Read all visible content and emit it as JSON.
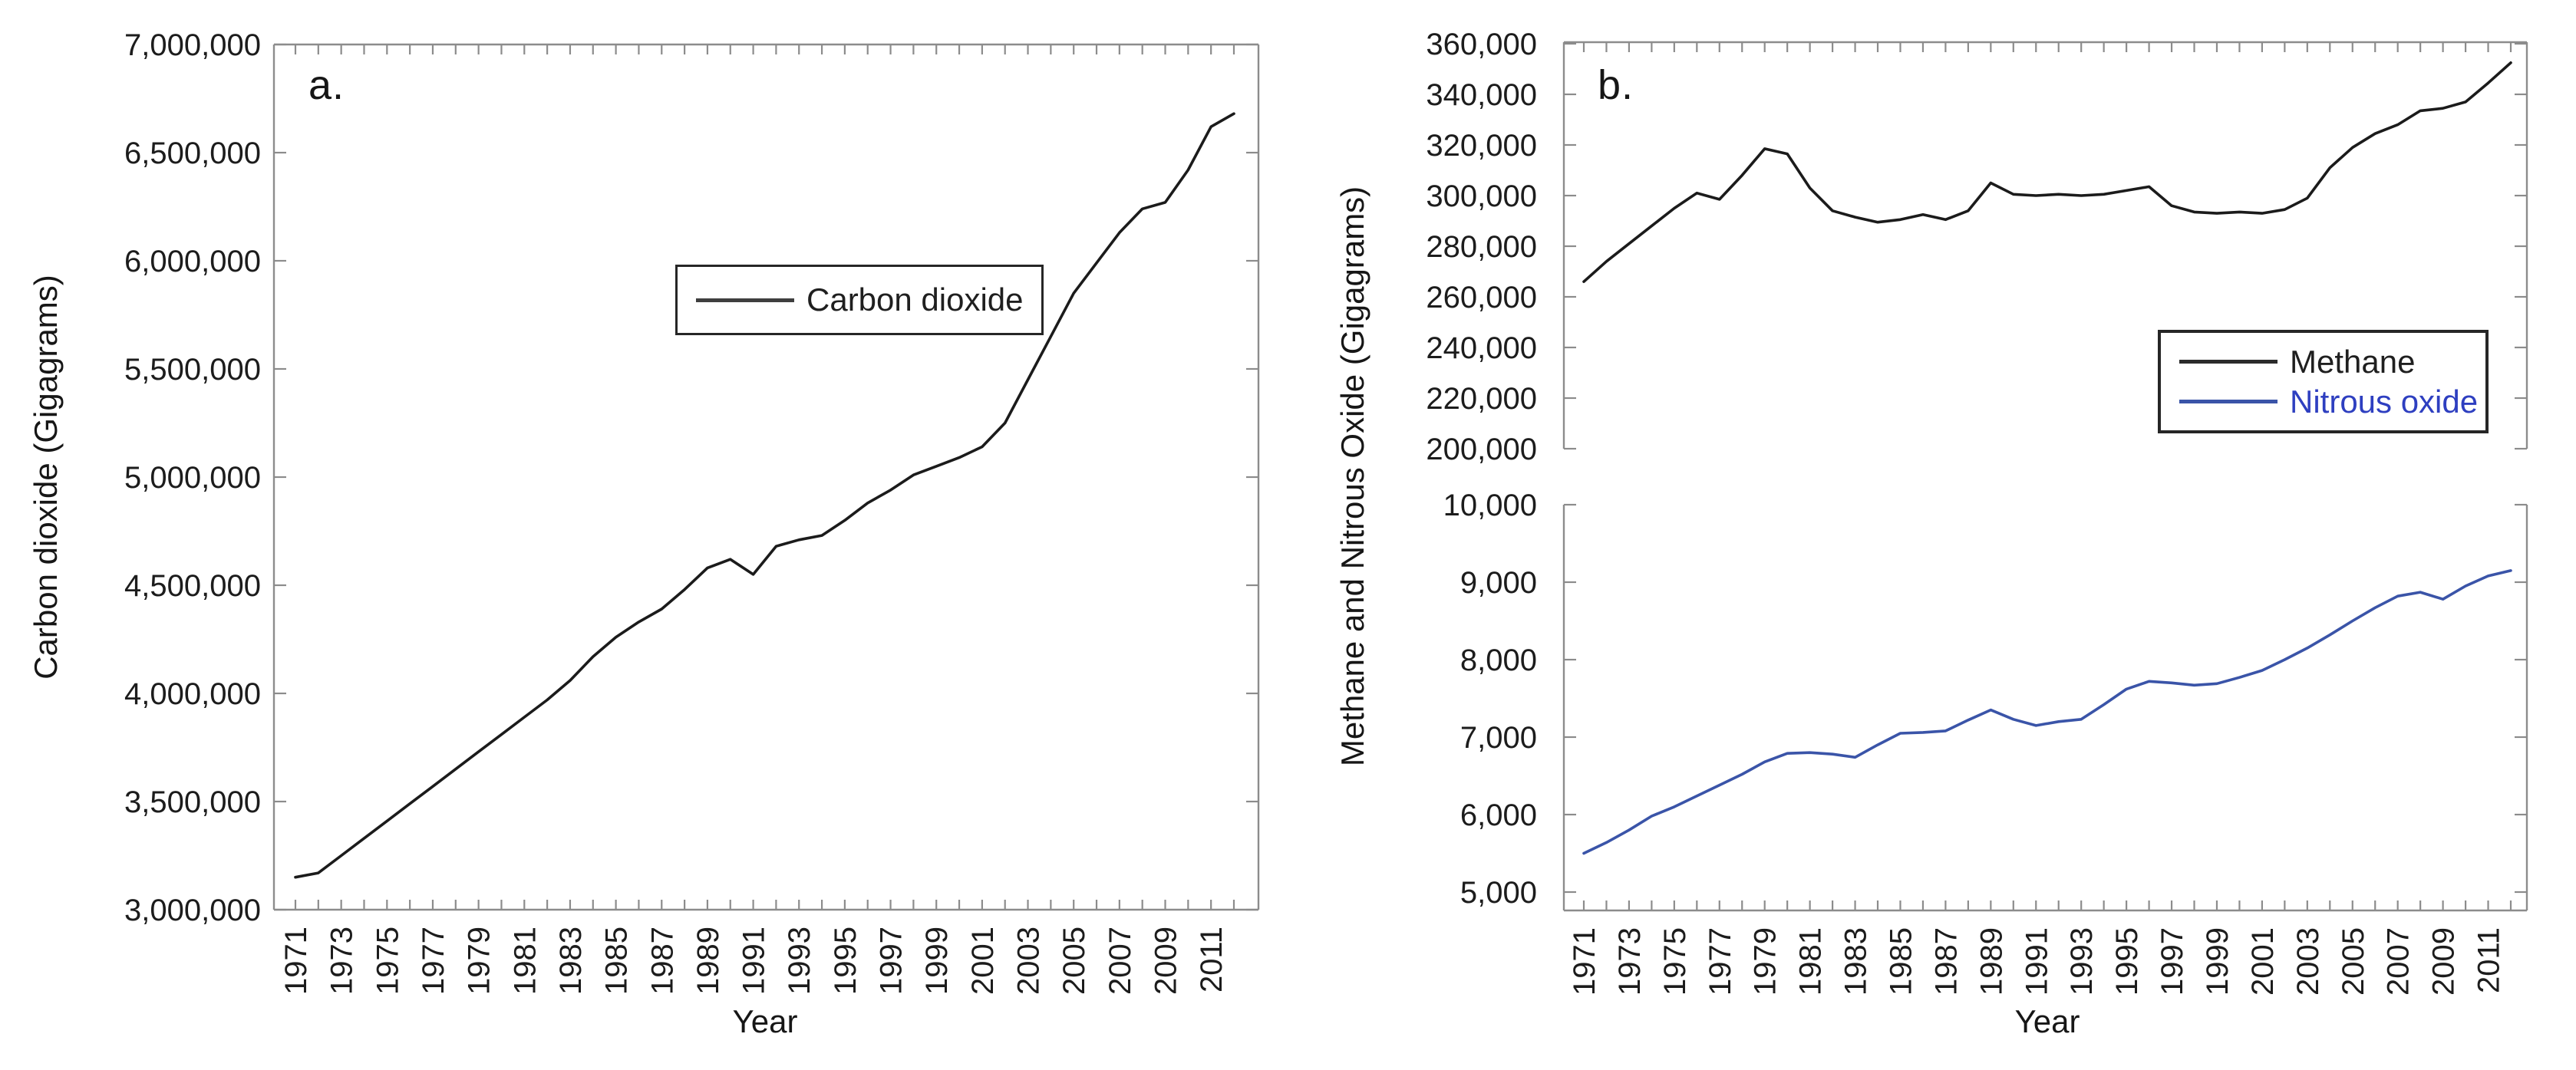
{
  "figure": {
    "background": "#ffffff",
    "axis_color": "#8c8c8c",
    "text_color": "#1c1c1c",
    "panel_a_letter": "a.",
    "panel_b_letter": "b."
  },
  "chart_data": [
    {
      "type": "line",
      "panel_label": "a.",
      "xlabel": "Year",
      "ylabel": "Carbon dioxide (Gigagrams)",
      "x_label_step": 2,
      "x": [
        1971,
        1972,
        1973,
        1974,
        1975,
        1976,
        1977,
        1978,
        1979,
        1980,
        1981,
        1982,
        1983,
        1984,
        1985,
        1986,
        1987,
        1988,
        1989,
        1990,
        1991,
        1992,
        1993,
        1994,
        1995,
        1996,
        1997,
        1998,
        1999,
        2000,
        2001,
        2002,
        2003,
        2004,
        2005,
        2006,
        2007,
        2008,
        2009,
        2010,
        2011,
        2012
      ],
      "axes": [
        {
          "ylim": [
            3000000,
            7000000
          ],
          "ytick_step": 500000,
          "grid": false,
          "series": [
            {
              "name": "Carbon dioxide",
              "color": "#1b1b1b",
              "values": [
                3150000,
                3170000,
                3250000,
                3330000,
                3410000,
                3490000,
                3570000,
                3650000,
                3730000,
                3810000,
                3890000,
                3970000,
                4060000,
                4170000,
                4260000,
                4330000,
                4390000,
                4480000,
                4580000,
                4620000,
                4550000,
                4680000,
                4710000,
                4730000,
                4800000,
                4880000,
                4940000,
                5010000,
                5050000,
                5090000,
                5140000,
                5250000,
                5450000,
                5650000,
                5850000,
                5990000,
                6130000,
                6240000,
                6270000,
                6420000,
                6620000,
                6680000
              ]
            }
          ]
        }
      ],
      "legend": {
        "position": "upper-left-of-center",
        "entries": [
          {
            "label": "Carbon dioxide",
            "swatch_color": "#3f3f3f",
            "text_color": "#1f1f1f"
          }
        ]
      }
    },
    {
      "type": "line",
      "panel_label": "b.",
      "xlabel": "Year",
      "ylabel": "Methane and Nitrous Oxide (Gigagrams)",
      "x_label_step": 2,
      "x": [
        1971,
        1972,
        1973,
        1974,
        1975,
        1976,
        1977,
        1978,
        1979,
        1980,
        1981,
        1982,
        1983,
        1984,
        1985,
        1986,
        1987,
        1988,
        1989,
        1990,
        1991,
        1992,
        1993,
        1994,
        1995,
        1996,
        1997,
        1998,
        1999,
        2000,
        2001,
        2002,
        2003,
        2004,
        2005,
        2006,
        2007,
        2008,
        2009,
        2010,
        2011,
        2012
      ],
      "axes": [
        {
          "ylim": [
            200000,
            360000
          ],
          "ytick_step": 20000,
          "grid": false,
          "series": [
            {
              "name": "Methane",
              "color": "#1b1b1b",
              "values": [
                266000,
                274000,
                281000,
                288000,
                295000,
                301000,
                298500,
                308000,
                318500,
                316500,
                303000,
                294000,
                291500,
                289500,
                290500,
                292500,
                290500,
                294000,
                305000,
                300500,
                300000,
                300500,
                300000,
                300500,
                302000,
                303500,
                296000,
                293500,
                293000,
                293500,
                293000,
                294500,
                299000,
                311000,
                319000,
                324500,
                328000,
                333500,
                334500,
                337000,
                344500,
                352500
              ]
            }
          ]
        },
        {
          "ylim": [
            5000,
            10000
          ],
          "ytick_step": 1000,
          "grid": false,
          "series": [
            {
              "name": "Nitrous oxide",
              "color": "#3a54a8",
              "values": [
                5500,
                5640,
                5800,
                5980,
                6100,
                6240,
                6380,
                6520,
                6680,
                6790,
                6800,
                6780,
                6740,
                6900,
                7050,
                7060,
                7080,
                7220,
                7350,
                7230,
                7150,
                7200,
                7230,
                7420,
                7620,
                7720,
                7700,
                7670,
                7690,
                7770,
                7860,
                8000,
                8150,
                8320,
                8500,
                8670,
                8820,
                8870,
                8780,
                8950,
                9080,
                9150
              ]
            }
          ]
        }
      ],
      "legend": {
        "position": "lower-right-of-break",
        "entries": [
          {
            "label": "Methane",
            "swatch_color": "#2b2b2b",
            "text_color": "#1f1f1f"
          },
          {
            "label": "Nitrous oxide",
            "swatch_color": "#3a54a8",
            "text_color": "#2e3fc0"
          }
        ]
      }
    }
  ]
}
